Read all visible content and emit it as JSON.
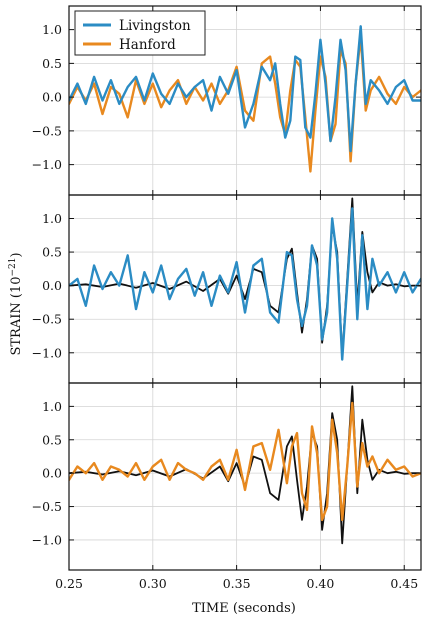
{
  "chart_data": {
    "type": "line",
    "layout": "3 vertically stacked panels sharing the x axis",
    "shared_xlabel": "TIME (seconds)",
    "shared_ylabel_text": "STRAIN (10",
    "shared_ylabel_exponent": "−21",
    "shared_ylabel_close": ")",
    "xlim": [
      0.25,
      0.46
    ],
    "x_ticks": [
      0.25,
      0.3,
      0.35,
      0.4,
      0.45
    ],
    "x_tick_labels": [
      "0.25",
      "0.30",
      "0.35",
      "0.40",
      "0.45"
    ],
    "ylim": [
      -1.45,
      1.35
    ],
    "y_ticks": [
      -1.0,
      -0.5,
      0.0,
      0.5,
      1.0
    ],
    "y_tick_labels": [
      "−1.0",
      "−0.5",
      "0.0",
      "0.5",
      "1.0"
    ],
    "grid": true,
    "colors": {
      "Livingston": "#2b8cc4",
      "Hanford": "#e8891f",
      "model": "#111111"
    },
    "panels": [
      {
        "legend_position": "top-left",
        "legend": [
          "Livingston",
          "Hanford"
        ],
        "series": [
          {
            "name": "Hanford",
            "color": "#e8891f",
            "x": [
              0.25,
              0.255,
              0.26,
              0.265,
              0.27,
              0.275,
              0.28,
              0.285,
              0.29,
              0.295,
              0.3,
              0.305,
              0.31,
              0.315,
              0.32,
              0.325,
              0.33,
              0.335,
              0.34,
              0.345,
              0.35,
              0.355,
              0.36,
              0.365,
              0.37,
              0.373,
              0.376,
              0.379,
              0.382,
              0.385,
              0.388,
              0.391,
              0.394,
              0.397,
              0.4,
              0.403,
              0.406,
              0.409,
              0.412,
              0.415,
              0.418,
              0.421,
              0.424,
              0.427,
              0.43,
              0.435,
              0.44,
              0.445,
              0.45,
              0.455,
              0.46
            ],
            "y": [
              -0.1,
              0.15,
              -0.05,
              0.2,
              -0.25,
              0.15,
              0.05,
              -0.3,
              0.25,
              -0.1,
              0.2,
              -0.15,
              0.1,
              0.25,
              -0.1,
              0.15,
              -0.05,
              0.2,
              -0.1,
              0.1,
              0.45,
              -0.2,
              -0.35,
              0.5,
              0.6,
              0.2,
              -0.3,
              -0.55,
              0.1,
              0.55,
              0.45,
              -0.3,
              -1.1,
              -0.2,
              0.6,
              0.3,
              -0.65,
              -0.4,
              0.7,
              0.5,
              -0.95,
              0.2,
              0.9,
              -0.2,
              0.1,
              0.3,
              0.05,
              -0.1,
              0.15,
              0.0,
              0.1
            ]
          },
          {
            "name": "Livingston",
            "color": "#2b8cc4",
            "x": [
              0.25,
              0.255,
              0.26,
              0.265,
              0.27,
              0.275,
              0.28,
              0.285,
              0.29,
              0.295,
              0.3,
              0.305,
              0.31,
              0.315,
              0.32,
              0.325,
              0.33,
              0.335,
              0.34,
              0.345,
              0.35,
              0.355,
              0.36,
              0.365,
              0.37,
              0.373,
              0.376,
              0.379,
              0.382,
              0.385,
              0.388,
              0.391,
              0.394,
              0.397,
              0.4,
              0.403,
              0.406,
              0.409,
              0.412,
              0.415,
              0.418,
              0.421,
              0.424,
              0.427,
              0.43,
              0.435,
              0.44,
              0.445,
              0.45,
              0.455,
              0.46
            ],
            "y": [
              -0.05,
              0.2,
              -0.1,
              0.3,
              -0.05,
              0.25,
              -0.1,
              0.15,
              0.3,
              -0.05,
              0.35,
              0.05,
              -0.1,
              0.2,
              0.0,
              0.15,
              0.25,
              -0.2,
              0.3,
              0.05,
              0.4,
              -0.45,
              -0.1,
              0.45,
              0.25,
              0.5,
              -0.1,
              -0.6,
              -0.35,
              0.6,
              0.55,
              -0.45,
              -0.6,
              0.05,
              0.85,
              0.2,
              -0.65,
              0.0,
              0.85,
              0.4,
              -0.8,
              0.2,
              1.05,
              -0.1,
              0.25,
              0.1,
              -0.1,
              0.15,
              0.25,
              -0.05,
              -0.05
            ]
          }
        ]
      },
      {
        "series": [
          {
            "name": "",
            "color": "#111111",
            "x": [
              0.25,
              0.26,
              0.27,
              0.28,
              0.29,
              0.3,
              0.31,
              0.32,
              0.33,
              0.34,
              0.345,
              0.35,
              0.355,
              0.36,
              0.365,
              0.37,
              0.375,
              0.38,
              0.383,
              0.386,
              0.389,
              0.392,
              0.395,
              0.398,
              0.401,
              0.404,
              0.407,
              0.41,
              0.413,
              0.416,
              0.419,
              0.422,
              0.425,
              0.428,
              0.431,
              0.435,
              0.44,
              0.445,
              0.45,
              0.455,
              0.46
            ],
            "y": [
              0.0,
              0.02,
              -0.02,
              0.03,
              -0.03,
              0.04,
              -0.05,
              0.06,
              -0.08,
              0.1,
              -0.12,
              0.15,
              -0.2,
              0.25,
              0.2,
              -0.3,
              -0.4,
              0.4,
              0.55,
              -0.1,
              -0.7,
              -0.2,
              0.6,
              0.4,
              -0.85,
              -0.3,
              0.9,
              0.5,
              -1.05,
              0.1,
              1.3,
              -0.3,
              0.8,
              0.2,
              -0.1,
              0.05,
              0.0,
              0.02,
              -0.01,
              0.0,
              0.0
            ]
          },
          {
            "name": "",
            "color": "#2b8cc4",
            "x": [
              0.25,
              0.255,
              0.26,
              0.265,
              0.27,
              0.275,
              0.28,
              0.285,
              0.29,
              0.295,
              0.3,
              0.305,
              0.31,
              0.315,
              0.32,
              0.325,
              0.33,
              0.335,
              0.34,
              0.345,
              0.35,
              0.355,
              0.36,
              0.365,
              0.37,
              0.375,
              0.38,
              0.383,
              0.386,
              0.389,
              0.392,
              0.395,
              0.398,
              0.401,
              0.404,
              0.407,
              0.41,
              0.413,
              0.416,
              0.419,
              0.422,
              0.425,
              0.428,
              0.431,
              0.435,
              0.44,
              0.445,
              0.45,
              0.455,
              0.46
            ],
            "y": [
              0.0,
              0.1,
              -0.3,
              0.3,
              -0.05,
              0.2,
              0.0,
              0.45,
              -0.35,
              0.2,
              -0.1,
              0.3,
              -0.2,
              0.1,
              0.25,
              -0.15,
              0.2,
              -0.3,
              0.15,
              -0.1,
              0.35,
              -0.4,
              0.3,
              0.4,
              -0.4,
              -0.55,
              0.5,
              0.45,
              -0.2,
              -0.6,
              -0.3,
              0.6,
              0.3,
              -0.8,
              -0.4,
              1.0,
              0.4,
              -1.1,
              0.0,
              1.15,
              -0.5,
              0.75,
              -0.35,
              0.4,
              0.0,
              0.2,
              -0.1,
              0.2,
              -0.1,
              0.1
            ]
          }
        ]
      },
      {
        "series": [
          {
            "name": "",
            "color": "#111111",
            "x": [
              0.25,
              0.26,
              0.27,
              0.28,
              0.29,
              0.3,
              0.31,
              0.32,
              0.33,
              0.34,
              0.345,
              0.35,
              0.355,
              0.36,
              0.365,
              0.37,
              0.375,
              0.38,
              0.383,
              0.386,
              0.389,
              0.392,
              0.395,
              0.398,
              0.401,
              0.404,
              0.407,
              0.41,
              0.413,
              0.416,
              0.419,
              0.422,
              0.425,
              0.428,
              0.431,
              0.435,
              0.44,
              0.445,
              0.45,
              0.455,
              0.46
            ],
            "y": [
              0.0,
              0.02,
              -0.02,
              0.03,
              -0.03,
              0.04,
              -0.05,
              0.06,
              -0.08,
              0.1,
              -0.12,
              0.15,
              -0.2,
              0.25,
              0.2,
              -0.3,
              -0.4,
              0.4,
              0.55,
              -0.1,
              -0.7,
              -0.2,
              0.6,
              0.4,
              -0.85,
              -0.3,
              0.9,
              0.5,
              -1.05,
              0.1,
              1.3,
              -0.3,
              0.8,
              0.2,
              -0.1,
              0.05,
              0.0,
              0.02,
              -0.01,
              0.0,
              0.0
            ]
          },
          {
            "name": "",
            "color": "#e8891f",
            "x": [
              0.25,
              0.255,
              0.26,
              0.265,
              0.27,
              0.275,
              0.28,
              0.285,
              0.29,
              0.295,
              0.3,
              0.305,
              0.31,
              0.315,
              0.32,
              0.325,
              0.33,
              0.335,
              0.34,
              0.345,
              0.35,
              0.355,
              0.36,
              0.365,
              0.37,
              0.375,
              0.38,
              0.383,
              0.386,
              0.389,
              0.392,
              0.395,
              0.398,
              0.401,
              0.404,
              0.407,
              0.41,
              0.413,
              0.416,
              0.419,
              0.422,
              0.425,
              0.428,
              0.431,
              0.435,
              0.44,
              0.445,
              0.45,
              0.455,
              0.46
            ],
            "y": [
              -0.1,
              0.1,
              0.0,
              0.15,
              -0.1,
              0.1,
              0.05,
              -0.05,
              0.15,
              -0.1,
              0.1,
              0.2,
              -0.1,
              0.15,
              0.05,
              0.0,
              -0.1,
              0.1,
              0.2,
              -0.1,
              0.35,
              -0.25,
              0.4,
              0.45,
              0.05,
              0.65,
              -0.15,
              0.4,
              0.6,
              -0.3,
              -0.55,
              0.7,
              0.3,
              -0.7,
              -0.5,
              0.8,
              0.3,
              -0.7,
              0.1,
              1.05,
              -0.2,
              0.45,
              0.1,
              0.25,
              0.0,
              0.2,
              0.05,
              0.1,
              -0.05,
              0.0
            ]
          }
        ]
      }
    ]
  }
}
